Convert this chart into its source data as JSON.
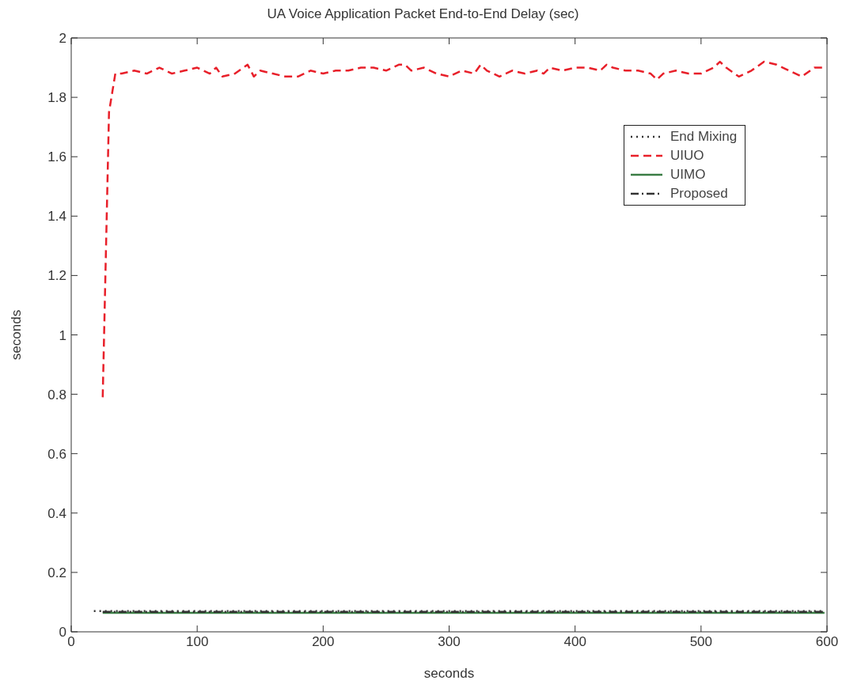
{
  "chart_data": {
    "type": "line",
    "title": "UA Voice Application Packet End-to-End Delay (sec)",
    "xlabel": "seconds",
    "ylabel": "seconds",
    "xlim": [
      0,
      600
    ],
    "xticks": [
      0,
      100,
      200,
      300,
      400,
      500,
      600
    ],
    "ylim": [
      0,
      2
    ],
    "yticks": [
      0,
      0.2,
      0.4,
      0.6,
      0.8,
      1,
      1.2,
      1.4,
      1.6,
      1.8,
      2
    ],
    "grid": false,
    "legend": "top right",
    "marker": "none",
    "series": [
      {
        "name": "End Mixing",
        "color": "#333333",
        "line_style": "dotted",
        "x": [
          18,
          598
        ],
        "values": [
          0.07,
          0.07
        ]
      },
      {
        "name": "UIUO",
        "color": "#e8202a",
        "line_style": "dashed",
        "x": [
          25,
          30,
          35,
          40,
          50,
          60,
          70,
          80,
          90,
          100,
          110,
          115,
          120,
          130,
          140,
          145,
          150,
          160,
          170,
          180,
          190,
          200,
          210,
          220,
          230,
          240,
          250,
          260,
          265,
          270,
          280,
          290,
          300,
          310,
          320,
          325,
          330,
          340,
          350,
          360,
          370,
          375,
          380,
          390,
          400,
          410,
          420,
          425,
          430,
          440,
          450,
          460,
          465,
          470,
          480,
          490,
          500,
          510,
          515,
          520,
          530,
          540,
          550,
          560,
          570,
          580,
          590,
          598
        ],
        "values": [
          0.79,
          1.75,
          1.88,
          1.88,
          1.89,
          1.88,
          1.9,
          1.88,
          1.89,
          1.9,
          1.88,
          1.9,
          1.87,
          1.88,
          1.91,
          1.87,
          1.89,
          1.88,
          1.87,
          1.87,
          1.89,
          1.88,
          1.89,
          1.89,
          1.9,
          1.9,
          1.89,
          1.91,
          1.91,
          1.89,
          1.9,
          1.88,
          1.87,
          1.89,
          1.88,
          1.91,
          1.89,
          1.87,
          1.89,
          1.88,
          1.89,
          1.88,
          1.9,
          1.89,
          1.9,
          1.9,
          1.89,
          1.91,
          1.9,
          1.89,
          1.89,
          1.88,
          1.86,
          1.88,
          1.89,
          1.88,
          1.88,
          1.9,
          1.92,
          1.9,
          1.87,
          1.89,
          1.92,
          1.91,
          1.89,
          1.87,
          1.9,
          1.9
        ]
      },
      {
        "name": "UIMO",
        "color": "#3a7d44",
        "line_style": "solid",
        "x": [
          25,
          598
        ],
        "values": [
          0.064,
          0.064
        ]
      },
      {
        "name": "Proposed",
        "color": "#333333",
        "line_style": "dashdot",
        "x": [
          25,
          598
        ],
        "values": [
          0.067,
          0.067
        ]
      }
    ]
  }
}
